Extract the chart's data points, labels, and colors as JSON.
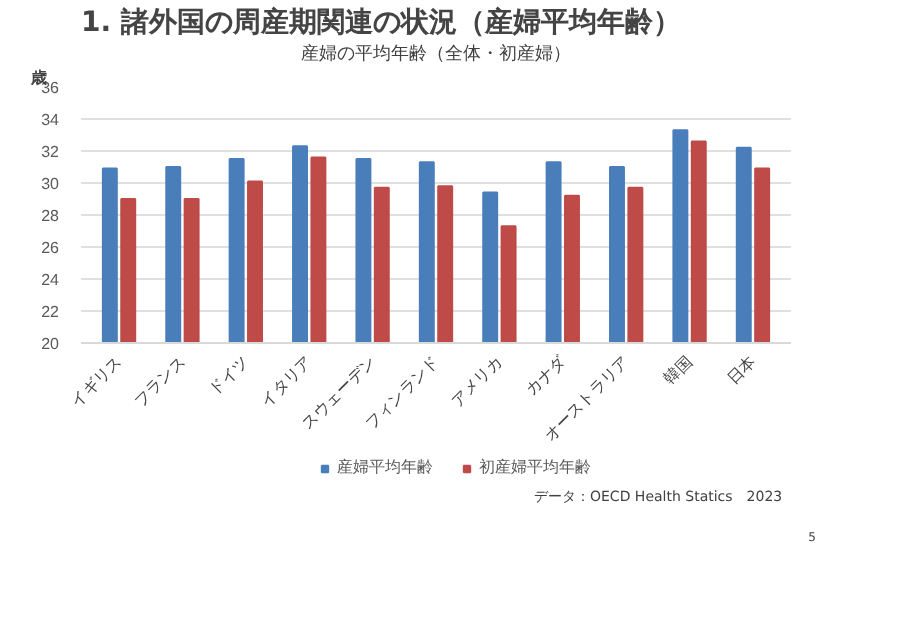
{
  "chart_data": {
    "type": "bar",
    "title": "1. 諸外国の周産期関連の状況（産婦平均年齢）",
    "subtitle": "産婦の平均年齢（全体・初産婦）",
    "ylabel": "歳",
    "categories": [
      "イギリス",
      "フランス",
      "ドイツ",
      "イタリア",
      "スウェーデン",
      "フィンランド",
      "アメリカ",
      "カナダ",
      "オーストラリア",
      "韓国",
      "日本"
    ],
    "series": [
      {
        "name": "産婦平均年齢",
        "color": "#4a7ebb",
        "values": [
          30.9,
          31.0,
          31.5,
          32.3,
          31.5,
          31.3,
          29.4,
          31.3,
          31.0,
          33.3,
          32.2
        ]
      },
      {
        "name": "初産婦平均年齢",
        "color": "#be4b48",
        "values": [
          29.0,
          29.0,
          30.1,
          31.6,
          29.7,
          29.8,
          27.3,
          29.2,
          29.7,
          32.6,
          30.9
        ]
      }
    ],
    "ylim": [
      20,
      36
    ],
    "yticks": [
      20,
      22,
      24,
      26,
      28,
      30,
      32,
      34,
      36
    ],
    "grid": "y",
    "legend": "bottom",
    "annotations": [
      "データ：OECD Health Statics　2023",
      "5"
    ]
  }
}
